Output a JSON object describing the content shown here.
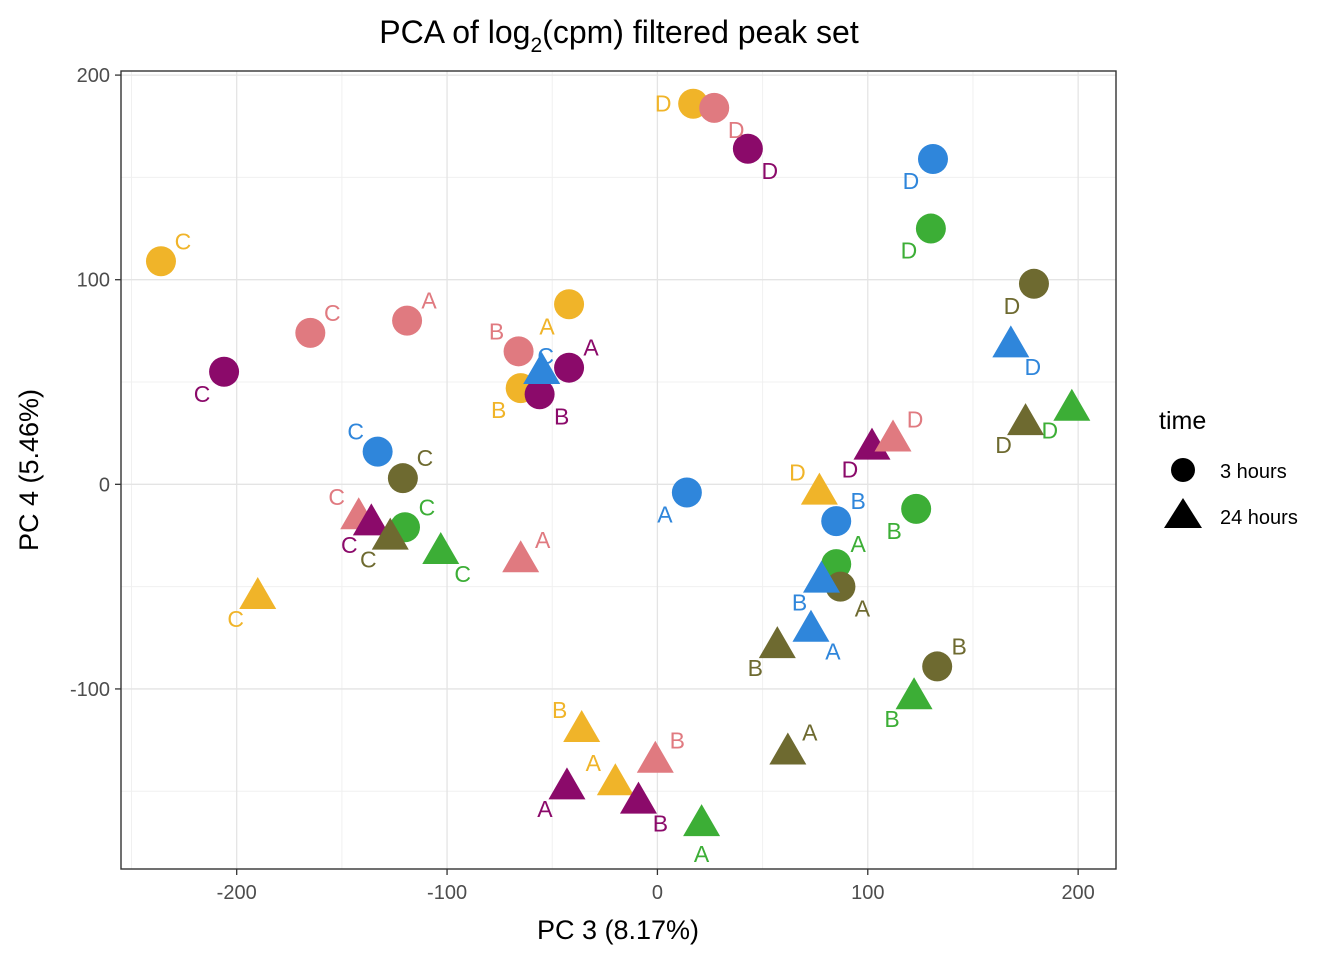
{
  "chart_data": {
    "type": "scatter",
    "title": "PCA of log2(cpm) filtered peak set",
    "title_parts": {
      "before": "PCA of log",
      "subscript": "2",
      "after": "(cpm) filtered peak set"
    },
    "xlabel": "PC 3 (8.17%)",
    "ylabel": "PC 4 (5.46%)",
    "xlim": [
      -255,
      218
    ],
    "ylim": [
      -188,
      202
    ],
    "xticks": [
      -200,
      -100,
      0,
      100,
      200
    ],
    "yticks": [
      -100,
      0,
      100,
      200
    ],
    "xtick_labels": [
      "-200",
      "-100",
      "0",
      "100",
      "200"
    ],
    "ytick_labels": [
      "-100",
      "0",
      "100",
      "200"
    ],
    "grid": true,
    "legend": {
      "title": "time",
      "position": "right",
      "entries": [
        {
          "label": "3 hours",
          "shape": "circle"
        },
        {
          "label": "24 hours",
          "shape": "triangle"
        }
      ]
    },
    "colors": {
      "orange": "#F0B429",
      "pink": "#E07A80",
      "purple": "#8B0A6A",
      "blue": "#2F86DB",
      "green": "#3CAE36",
      "olive": "#6E6A30"
    },
    "points": [
      {
        "x": 17,
        "y": 186,
        "time": "3 hours",
        "color": "orange",
        "label": "D",
        "pos": "l"
      },
      {
        "x": 27,
        "y": 184,
        "time": "3 hours",
        "color": "pink",
        "label": "D",
        "pos": "br"
      },
      {
        "x": 43,
        "y": 164,
        "time": "3 hours",
        "color": "purple",
        "label": "D",
        "pos": "br"
      },
      {
        "x": 131,
        "y": 159,
        "time": "3 hours",
        "color": "blue",
        "label": "D",
        "pos": "bl"
      },
      {
        "x": 130,
        "y": 125,
        "time": "3 hours",
        "color": "green",
        "label": "D",
        "pos": "bl"
      },
      {
        "x": 179,
        "y": 98,
        "time": "3 hours",
        "color": "olive",
        "label": "D",
        "pos": "bl"
      },
      {
        "x": -236,
        "y": 109,
        "time": "3 hours",
        "color": "orange",
        "label": "C",
        "pos": "tr"
      },
      {
        "x": -165,
        "y": 74,
        "time": "3 hours",
        "color": "pink",
        "label": "C",
        "pos": "tr"
      },
      {
        "x": -119,
        "y": 80,
        "time": "3 hours",
        "color": "pink",
        "label": "A",
        "pos": "tr"
      },
      {
        "x": -206,
        "y": 55,
        "time": "3 hours",
        "color": "purple",
        "label": "C",
        "pos": "bl"
      },
      {
        "x": -42,
        "y": 88,
        "time": "3 hours",
        "color": "orange",
        "label": "A",
        "pos": "bl"
      },
      {
        "x": -66,
        "y": 65,
        "time": "3 hours",
        "color": "pink",
        "label": "B",
        "pos": "tl"
      },
      {
        "x": -42,
        "y": 57,
        "time": "3 hours",
        "color": "purple",
        "label": "A",
        "pos": "tr"
      },
      {
        "x": -65,
        "y": 47,
        "time": "3 hours",
        "color": "orange",
        "label": "B",
        "pos": "bl"
      },
      {
        "x": -56,
        "y": 44,
        "time": "3 hours",
        "color": "purple",
        "label": "B",
        "pos": "br"
      },
      {
        "x": -133,
        "y": 16,
        "time": "3 hours",
        "color": "blue",
        "label": "C",
        "pos": "tl"
      },
      {
        "x": -121,
        "y": 3,
        "time": "3 hours",
        "color": "olive",
        "label": "C",
        "pos": "tr"
      },
      {
        "x": -120,
        "y": -21,
        "time": "3 hours",
        "color": "green",
        "label": "C",
        "pos": "tr"
      },
      {
        "x": 14,
        "y": -4,
        "time": "3 hours",
        "color": "blue",
        "label": "A",
        "pos": "bl"
      },
      {
        "x": 85,
        "y": -18,
        "time": "3 hours",
        "color": "blue",
        "label": "B",
        "pos": "tr"
      },
      {
        "x": 123,
        "y": -12,
        "time": "3 hours",
        "color": "green",
        "label": "B",
        "pos": "bl"
      },
      {
        "x": 85,
        "y": -39,
        "time": "3 hours",
        "color": "green",
        "label": "A",
        "pos": "tr"
      },
      {
        "x": 87,
        "y": -50,
        "time": "3 hours",
        "color": "olive",
        "label": "A",
        "pos": "br"
      },
      {
        "x": 133,
        "y": -89,
        "time": "3 hours",
        "color": "olive",
        "label": "B",
        "pos": "tr"
      },
      {
        "x": 168,
        "y": 68,
        "time": "24 hours",
        "color": "blue",
        "label": "D",
        "pos": "br"
      },
      {
        "x": 197,
        "y": 37,
        "time": "24 hours",
        "color": "green",
        "label": "D",
        "pos": "bl"
      },
      {
        "x": 175,
        "y": 30,
        "time": "24 hours",
        "color": "olive",
        "label": "D",
        "pos": "bl"
      },
      {
        "x": 102,
        "y": 18,
        "time": "24 hours",
        "color": "purple",
        "label": "D",
        "pos": "bl"
      },
      {
        "x": 112,
        "y": 22,
        "time": "24 hours",
        "color": "pink",
        "label": "D",
        "pos": "tr"
      },
      {
        "x": 77,
        "y": -4,
        "time": "24 hours",
        "color": "orange",
        "label": "D",
        "pos": "tl"
      },
      {
        "x": -55,
        "y": 55,
        "time": "24 hours",
        "color": "blue",
        "label": "C",
        "pos": "t"
      },
      {
        "x": -142,
        "y": -16,
        "time": "24 hours",
        "color": "pink",
        "label": "C",
        "pos": "tl"
      },
      {
        "x": -136,
        "y": -19,
        "time": "24 hours",
        "color": "purple",
        "label": "C",
        "pos": "bl"
      },
      {
        "x": -127,
        "y": -26,
        "time": "24 hours",
        "color": "olive",
        "label": "C",
        "pos": "bl"
      },
      {
        "x": -103,
        "y": -33,
        "time": "24 hours",
        "color": "green",
        "label": "C",
        "pos": "br"
      },
      {
        "x": -190,
        "y": -55,
        "time": "24 hours",
        "color": "orange",
        "label": "C",
        "pos": "bl"
      },
      {
        "x": -65,
        "y": -37,
        "time": "24 hours",
        "color": "pink",
        "label": "A",
        "pos": "tr"
      },
      {
        "x": 78,
        "y": -47,
        "time": "24 hours",
        "color": "blue",
        "label": "B",
        "pos": "bl"
      },
      {
        "x": 73,
        "y": -71,
        "time": "24 hours",
        "color": "blue",
        "label": "A",
        "pos": "br"
      },
      {
        "x": 57,
        "y": -79,
        "time": "24 hours",
        "color": "olive",
        "label": "B",
        "pos": "bl"
      },
      {
        "x": 122,
        "y": -104,
        "time": "24 hours",
        "color": "green",
        "label": "B",
        "pos": "bl"
      },
      {
        "x": 62,
        "y": -131,
        "time": "24 hours",
        "color": "olive",
        "label": "A",
        "pos": "tr"
      },
      {
        "x": -36,
        "y": -120,
        "time": "24 hours",
        "color": "orange",
        "label": "B",
        "pos": "tl"
      },
      {
        "x": -20,
        "y": -146,
        "time": "24 hours",
        "color": "orange",
        "label": "A",
        "pos": "tl"
      },
      {
        "x": -1,
        "y": -135,
        "time": "24 hours",
        "color": "pink",
        "label": "B",
        "pos": "tr"
      },
      {
        "x": -43,
        "y": -148,
        "time": "24 hours",
        "color": "purple",
        "label": "A",
        "pos": "bl"
      },
      {
        "x": -9,
        "y": -155,
        "time": "24 hours",
        "color": "purple",
        "label": "B",
        "pos": "br"
      },
      {
        "x": 21,
        "y": -166,
        "time": "24 hours",
        "color": "green",
        "label": "A",
        "pos": "b"
      }
    ]
  }
}
